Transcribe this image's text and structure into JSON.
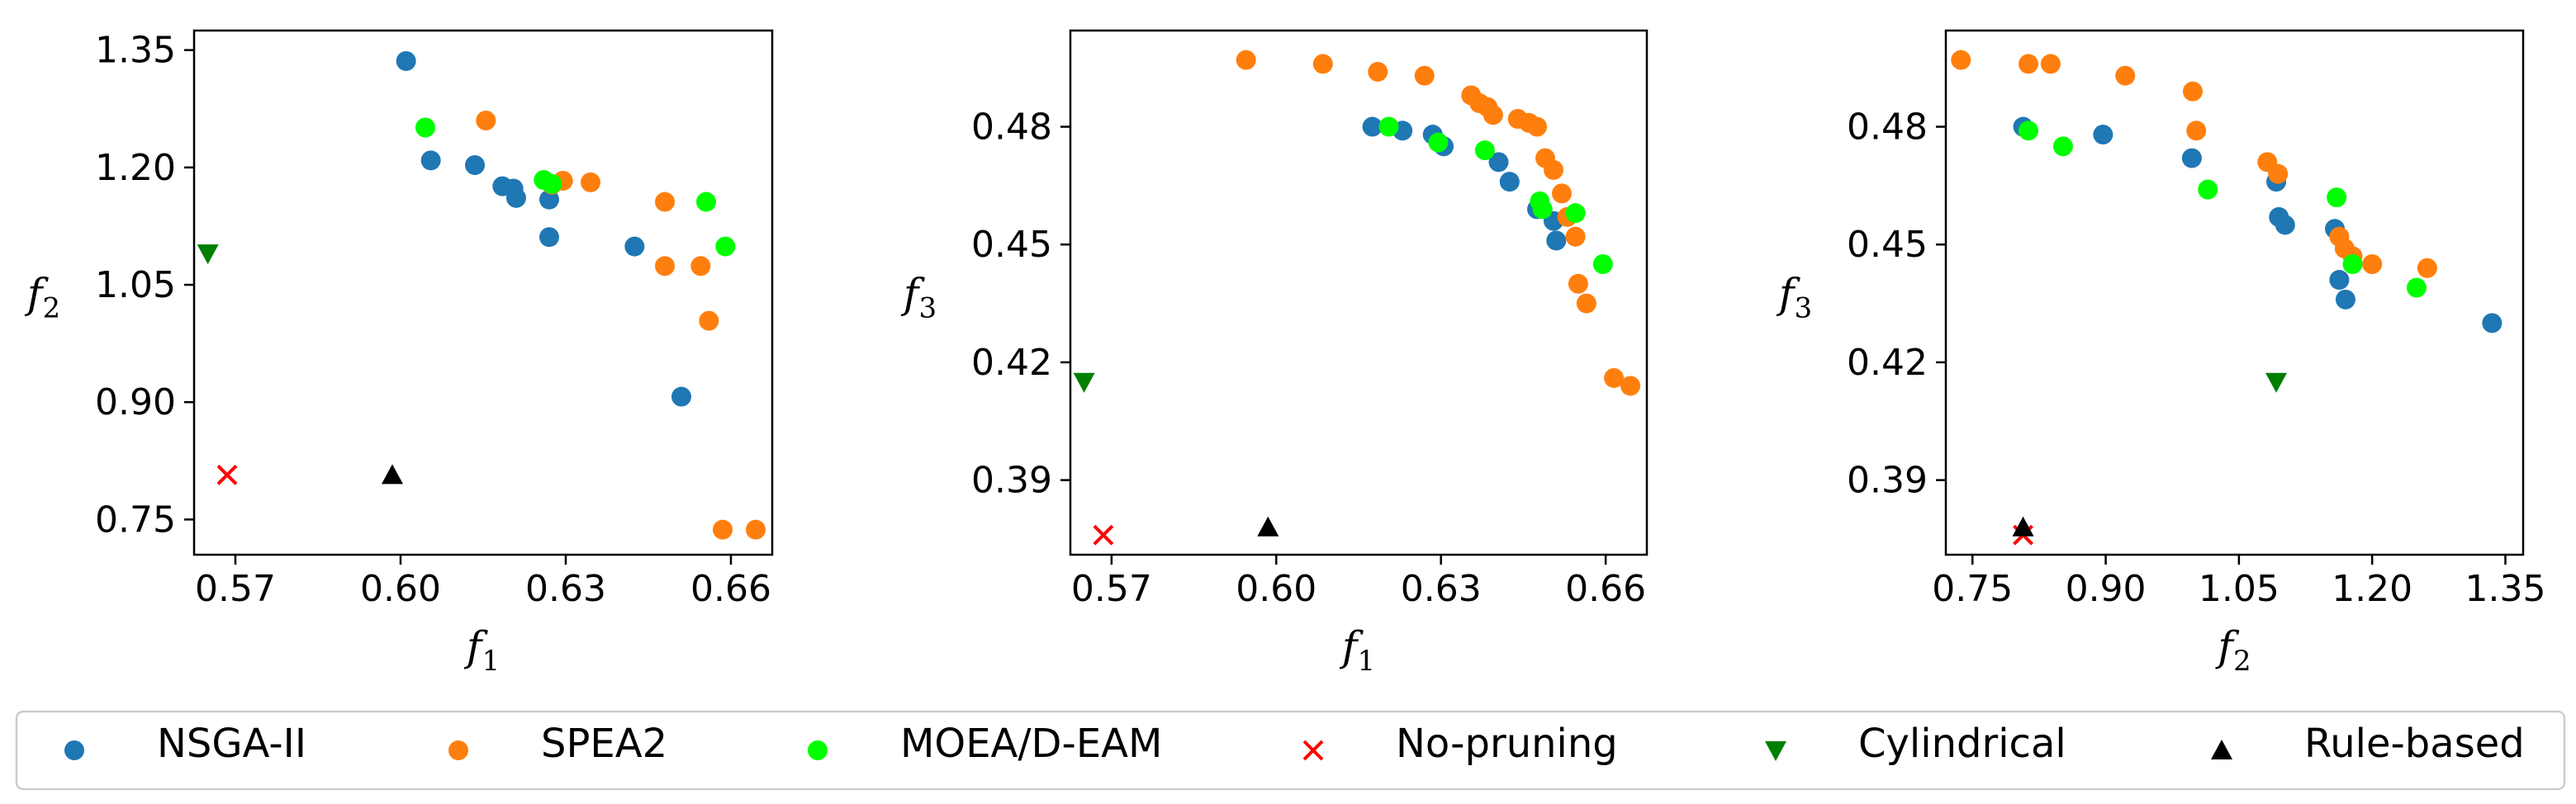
{
  "chart_data": [
    {
      "type": "scatter",
      "xlabel": "f1",
      "ylabel": "f2",
      "x_ticks": [
        "0.57",
        "0.60",
        "0.63",
        "0.66"
      ],
      "y_ticks": [
        "0.75",
        "0.90",
        "1.05",
        "1.20",
        "1.35"
      ],
      "xlim": [
        0.5625,
        0.6675
      ],
      "ylim": [
        0.705,
        1.375
      ],
      "grid": false,
      "series": [
        {
          "name": "NSGA-II",
          "marker": "circle",
          "color": "#1f77b4",
          "x": [
            0.601,
            0.6055,
            0.6135,
            0.6185,
            0.6205,
            0.621,
            0.627,
            0.627,
            0.6425,
            0.651
          ],
          "y": [
            1.336,
            1.209,
            1.203,
            1.176,
            1.173,
            1.161,
            1.159,
            1.111,
            1.099,
            0.907
          ]
        },
        {
          "name": "SPEA2",
          "marker": "circle",
          "color": "#ff7f0e",
          "x": [
            0.6155,
            0.6275,
            0.6295,
            0.6345,
            0.648,
            0.648,
            0.6545,
            0.656,
            0.6585,
            0.6645
          ],
          "y": [
            1.26,
            1.178,
            1.183,
            1.181,
            1.156,
            1.074,
            1.074,
            1.004,
            0.737,
            0.737
          ]
        },
        {
          "name": "MOEA/D-EAM",
          "marker": "circle",
          "color": "#00ff00",
          "x": [
            0.6045,
            0.626,
            0.6275,
            0.6555,
            0.659
          ],
          "y": [
            1.251,
            1.184,
            1.179,
            1.156,
            1.099
          ]
        },
        {
          "name": "No-pruning",
          "marker": "x",
          "color": "#ff0000",
          "x": [
            0.5685
          ],
          "y": [
            0.807
          ]
        },
        {
          "name": "Cylindrical",
          "marker": "triangle-down",
          "color": "#007f00",
          "x": [
            0.565
          ],
          "y": [
            1.09
          ]
        },
        {
          "name": "Rule-based",
          "marker": "triangle-up",
          "color": "#000000",
          "x": [
            0.5985
          ],
          "y": [
            0.807
          ]
        }
      ]
    },
    {
      "type": "scatter",
      "xlabel": "f1",
      "ylabel": "f3",
      "x_ticks": [
        "0.57",
        "0.60",
        "0.63",
        "0.66"
      ],
      "y_ticks": [
        "0.39",
        "0.42",
        "0.45",
        "0.48"
      ],
      "xlim": [
        0.5625,
        0.6675
      ],
      "ylim": [
        0.371,
        0.5045
      ],
      "grid": false,
      "series": [
        {
          "name": "NSGA-II",
          "marker": "circle",
          "color": "#1f77b4",
          "x": [
            0.6175,
            0.623,
            0.6285,
            0.6305,
            0.6405,
            0.6425,
            0.6475,
            0.6505,
            0.651
          ],
          "y": [
            0.48,
            0.479,
            0.478,
            0.475,
            0.471,
            0.466,
            0.459,
            0.456,
            0.451
          ]
        },
        {
          "name": "SPEA2",
          "marker": "circle",
          "color": "#ff7f0e",
          "x": [
            0.5945,
            0.6085,
            0.6185,
            0.627,
            0.6355,
            0.637,
            0.6385,
            0.6395,
            0.644,
            0.646,
            0.6475,
            0.649,
            0.6505,
            0.652,
            0.653,
            0.6545,
            0.655,
            0.6565,
            0.6615,
            0.6645
          ],
          "y": [
            0.497,
            0.496,
            0.494,
            0.493,
            0.488,
            0.486,
            0.485,
            0.483,
            0.482,
            0.481,
            0.48,
            0.472,
            0.469,
            0.463,
            0.457,
            0.452,
            0.44,
            0.435,
            0.416,
            0.414
          ]
        },
        {
          "name": "MOEA/D-EAM",
          "marker": "circle",
          "color": "#00ff00",
          "x": [
            0.6205,
            0.6295,
            0.638,
            0.648,
            0.6485,
            0.6545,
            0.6595
          ],
          "y": [
            0.48,
            0.476,
            0.474,
            0.461,
            0.459,
            0.458,
            0.445
          ]
        },
        {
          "name": "No-pruning",
          "marker": "x",
          "color": "#ff0000",
          "x": [
            0.5685
          ],
          "y": [
            0.376
          ]
        },
        {
          "name": "Cylindrical",
          "marker": "triangle-down",
          "color": "#007f00",
          "x": [
            0.565
          ],
          "y": [
            0.415
          ]
        },
        {
          "name": "Rule-based",
          "marker": "triangle-up",
          "color": "#000000",
          "x": [
            0.5985
          ],
          "y": [
            0.378
          ]
        }
      ]
    },
    {
      "type": "scatter",
      "xlabel": "f2",
      "ylabel": "f3",
      "x_ticks": [
        "0.75",
        "0.90",
        "1.05",
        "1.20",
        "1.35"
      ],
      "y_ticks": [
        "0.39",
        "0.42",
        "0.45",
        "0.48"
      ],
      "xlim": [
        0.72,
        1.37
      ],
      "ylim": [
        0.371,
        0.5045
      ],
      "grid": false,
      "series": [
        {
          "name": "NSGA-II",
          "marker": "circle",
          "color": "#1f77b4",
          "x": [
            0.807,
            0.897,
            0.997,
            1.092,
            1.095,
            1.102,
            1.158,
            1.163,
            1.17,
            1.335
          ],
          "y": [
            0.48,
            0.478,
            0.472,
            0.466,
            0.457,
            0.455,
            0.454,
            0.441,
            0.436,
            0.43
          ]
        },
        {
          "name": "SPEA2",
          "marker": "circle",
          "color": "#ff7f0e",
          "x": [
            0.737,
            0.813,
            0.838,
            0.922,
            0.998,
            1.002,
            1.082,
            1.094,
            1.163,
            1.169,
            1.178,
            1.2,
            1.262
          ],
          "y": [
            0.497,
            0.496,
            0.496,
            0.493,
            0.489,
            0.479,
            0.471,
            0.468,
            0.452,
            0.449,
            0.447,
            0.445,
            0.444
          ]
        },
        {
          "name": "MOEA/D-EAM",
          "marker": "circle",
          "color": "#00ff00",
          "x": [
            0.813,
            0.852,
            1.015,
            1.16,
            1.178,
            1.25
          ],
          "y": [
            0.479,
            0.475,
            0.464,
            0.462,
            0.445,
            0.439
          ]
        },
        {
          "name": "No-pruning",
          "marker": "x",
          "color": "#ff0000",
          "x": [
            0.807
          ],
          "y": [
            0.376
          ]
        },
        {
          "name": "Cylindrical",
          "marker": "triangle-down",
          "color": "#007f00",
          "x": [
            1.092
          ],
          "y": [
            0.415
          ]
        },
        {
          "name": "Rule-based",
          "marker": "triangle-up",
          "color": "#000000",
          "x": [
            0.807
          ],
          "y": [
            0.378
          ]
        }
      ]
    }
  ],
  "legend": {
    "position": "bottom",
    "items": [
      {
        "label": "NSGA-II",
        "marker": "circle",
        "color": "#1f77b4"
      },
      {
        "label": "SPEA2",
        "marker": "circle",
        "color": "#ff7f0e"
      },
      {
        "label": "MOEA/D-EAM",
        "marker": "circle",
        "color": "#00ff00"
      },
      {
        "label": "No-pruning",
        "marker": "x",
        "color": "#ff0000"
      },
      {
        "label": "Cylindrical",
        "marker": "triangle-down",
        "color": "#007f00"
      },
      {
        "label": "Rule-based",
        "marker": "triangle-up",
        "color": "#000000"
      }
    ]
  }
}
